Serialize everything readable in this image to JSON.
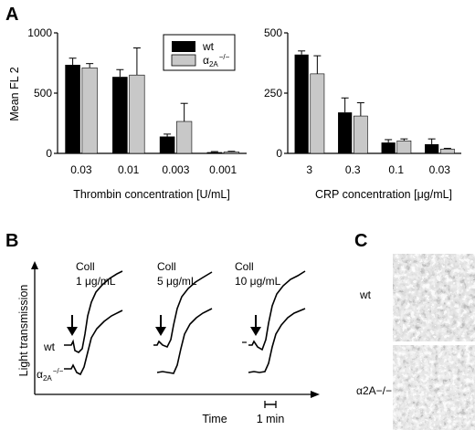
{
  "panels": {
    "a": "A",
    "b": "B",
    "c": "C"
  },
  "colors": {
    "wt": "#000000",
    "a2a": "#c8c8c8",
    "axis": "#000000",
    "trace": "#000000"
  },
  "legend": {
    "wt_label": "wt",
    "a2a_symbol": "α",
    "a2a_sub": "2A",
    "a2a_sup": "−/−"
  },
  "chart_data": [
    {
      "type": "bar",
      "ylabel": "Mean FL 2",
      "xlabel": "Thrombin concentration [U/mL]",
      "categories": [
        "0.03",
        "0.01",
        "0.003",
        "0.001"
      ],
      "ylim": [
        0,
        1000
      ],
      "yticks": [
        0,
        500,
        1000
      ],
      "series": [
        {
          "name": "wt",
          "values": [
            735,
            635,
            140,
            10
          ],
          "errors": [
            55,
            60,
            20,
            5
          ]
        },
        {
          "name": "α2A−/−",
          "values": [
            710,
            650,
            265,
            12
          ],
          "errors": [
            35,
            225,
            150,
            5
          ]
        }
      ]
    },
    {
      "type": "bar",
      "xlabel": "CRP concentration [μg/mL]",
      "categories": [
        "3",
        "0.3",
        "0.1",
        "0.03"
      ],
      "ylim": [
        0,
        500
      ],
      "yticks": [
        0,
        250,
        500
      ],
      "series": [
        {
          "name": "wt",
          "values": [
            410,
            170,
            45,
            38
          ],
          "errors": [
            15,
            60,
            12,
            22
          ]
        },
        {
          "name": "α2A−/−",
          "values": [
            330,
            155,
            52,
            18
          ],
          "errors": [
            75,
            55,
            8,
            3
          ]
        }
      ]
    }
  ],
  "aggregometry": {
    "y_label": "Light transmission",
    "x_label": "Time",
    "scale_label": "1 min",
    "wt_label": "wt",
    "a2a_symbol": "α",
    "a2a_sub": "2A",
    "a2a_sup": "−/−",
    "conditions": [
      {
        "agent": "Coll",
        "dose": "1 μg/mL"
      },
      {
        "agent": "Coll",
        "dose": "5 μg/mL"
      },
      {
        "agent": "Coll",
        "dose": "10 μg/mL"
      }
    ]
  },
  "micrographs": {
    "wt_label": "wt",
    "a2a_label": "α2A−/−"
  }
}
